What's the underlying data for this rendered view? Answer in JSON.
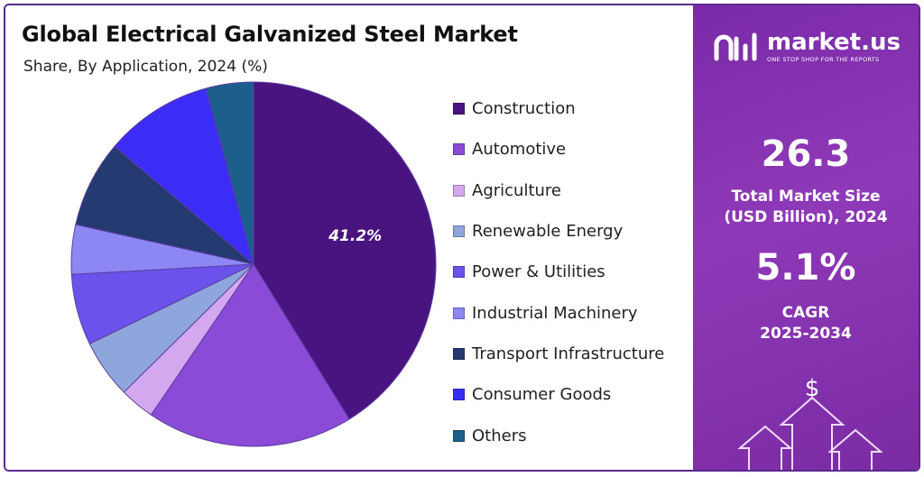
{
  "header": {
    "title": "Global Electrical Galvanized Steel Market",
    "subtitle": "Share, By Application, 2024 (%)"
  },
  "chart_data": {
    "type": "pie",
    "title": "Global Electrical Galvanized Steel Market",
    "subtitle": "Share, By Application, 2024 (%)",
    "legend_position": "right",
    "slices": [
      {
        "label": "Construction",
        "value": 41.2,
        "color": "#4a1480"
      },
      {
        "label": "Automotive",
        "value": 18.3,
        "color": "#8b4bd6"
      },
      {
        "label": "Agriculture",
        "value": 3.1,
        "color": "#d3a8ee"
      },
      {
        "label": "Renewable Energy",
        "value": 5.2,
        "color": "#8ea6dc"
      },
      {
        "label": "Power & Utilities",
        "value": 6.3,
        "color": "#6a52ea"
      },
      {
        "label": "Industrial Machinery",
        "value": 4.4,
        "color": "#8c87f2"
      },
      {
        "label": "Transport Infrastructure",
        "value": 7.7,
        "color": "#243a70"
      },
      {
        "label": "Consumer Goods",
        "value": 9.6,
        "color": "#3b2cf6"
      },
      {
        "label": "Others",
        "value": 4.2,
        "color": "#1d5f8c"
      }
    ],
    "data_labels": [
      {
        "slice": "Construction",
        "text": "41.2%"
      }
    ]
  },
  "sidebar": {
    "brand": "market.us",
    "tagline": "ONE STOP SHOP FOR THE REPORTS",
    "market_size_value": "26.3",
    "market_size_caption_line1": "Total Market Size",
    "market_size_caption_line2": "(USD Billion), 2024",
    "cagr_value": "5.1%",
    "cagr_caption_line1": "CAGR",
    "cagr_caption_line2": "2025-2034",
    "dollar_symbol": "$"
  }
}
